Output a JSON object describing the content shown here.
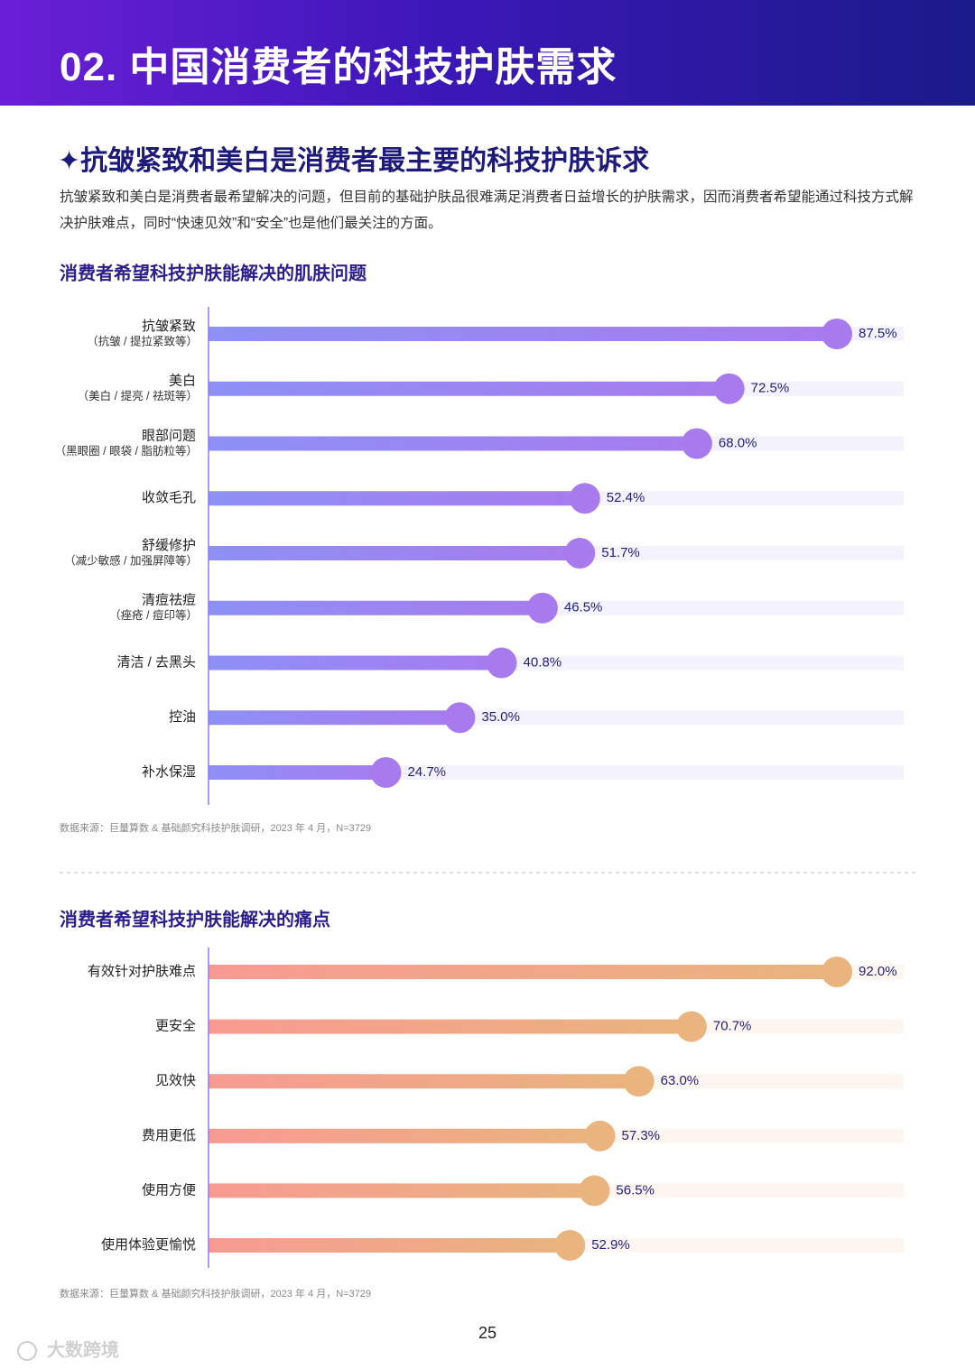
{
  "header": {
    "title": "02. 中国消费者的科技护肤需求"
  },
  "section": {
    "title": "✦抗皱紧致和美白是消费者最主要的科技护肤诉求",
    "body": "抗皱紧致和美白是消费者最希望解决的问题，但目前的基础护肤品很难满足消费者日益增长的护肤需求，因而消费者希望能通过科技方式解决护肤难点，同时“快速见效”和“安全”也是他们最关注的方面。"
  },
  "chart_data": [
    {
      "type": "bar",
      "title": "消费者希望科技护肤能解决的肌肤问题",
      "categories": [
        "抗皱紧致",
        "美白",
        "眼部问题",
        "收敛毛孔",
        "舒缓修护",
        "清痘祛痘",
        "清洁 / 去黑头",
        "控油",
        "补水保湿"
      ],
      "category_notes": [
        "（抗皱 / 提拉紧致等）",
        "（美白 / 提亮 / 祛斑等）",
        "（黑眼圈 / 眼袋 / 脂肪粒等）",
        null,
        "（减少敏感 / 加强屏障等）",
        "（痤疮 / 痘印等）",
        null,
        null,
        null
      ],
      "values": [
        87.5,
        72.5,
        68.0,
        52.4,
        51.7,
        46.5,
        40.8,
        35.0,
        24.7
      ],
      "value_labels": [
        "87.5%",
        "72.5%",
        "68.0%",
        "52.4%",
        "51.7%",
        "46.5%",
        "40.8%",
        "35.0%",
        "24.7%"
      ],
      "gradient": [
        "#8d90f6",
        "#a77bee"
      ],
      "track_color": "#f4f2fc",
      "source": "数据来源：巨量算数 & 基础颜究科技护肤调研，2023 年 4 月，N=3729"
    },
    {
      "type": "bar",
      "title": "消费者希望科技护肤能解决的痛点",
      "categories": [
        "有效针对护肤难点",
        "更安全",
        "见效快",
        "费用更低",
        "使用方便",
        "使用体验更愉悦"
      ],
      "category_notes": [
        null,
        null,
        null,
        null,
        null,
        null
      ],
      "values": [
        92.0,
        70.7,
        63.0,
        57.3,
        56.5,
        52.9
      ],
      "value_labels": [
        "92.0%",
        "70.7%",
        "63.0%",
        "57.3%",
        "56.5%",
        "52.9%"
      ],
      "gradient": [
        "#f89a92",
        "#e9b47d"
      ],
      "track_color": "#fdf6f0",
      "source": "数据来源：巨量算数 & 基础颜究科技护肤调研，2023 年 4 月，N=3729"
    }
  ],
  "page_number": "25",
  "watermark": "大数跨境"
}
